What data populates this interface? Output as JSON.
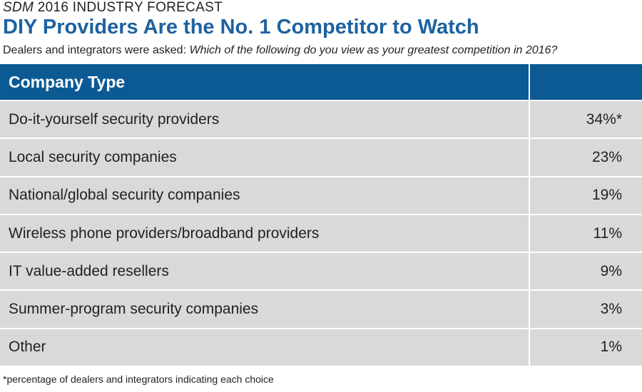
{
  "header": {
    "kicker_italic": "SDM",
    "kicker": "2016 INDUSTRY FORECAST",
    "title": "DIY Providers Are the No. 1 Competitor to Watch",
    "subtitle": "Dealers and integrators were asked:",
    "question": "Which of the following do you view as your greatest competition in 2016?"
  },
  "table": {
    "columns": [
      "Company Type"
    ],
    "rows": [
      [
        "Do-it-yourself security providers",
        "34%*"
      ],
      [
        "Local security companies",
        "23%"
      ],
      [
        "National/global security companies",
        "19%"
      ],
      [
        "Wireless phone providers/broadband providers",
        "11%"
      ],
      [
        "IT value-added resellers",
        "9%"
      ],
      [
        "Summer-program security companies",
        "3%"
      ],
      [
        "Other",
        "1%"
      ]
    ]
  },
  "footnote": "*percentage of dealers and integrators indicating each choice"
}
